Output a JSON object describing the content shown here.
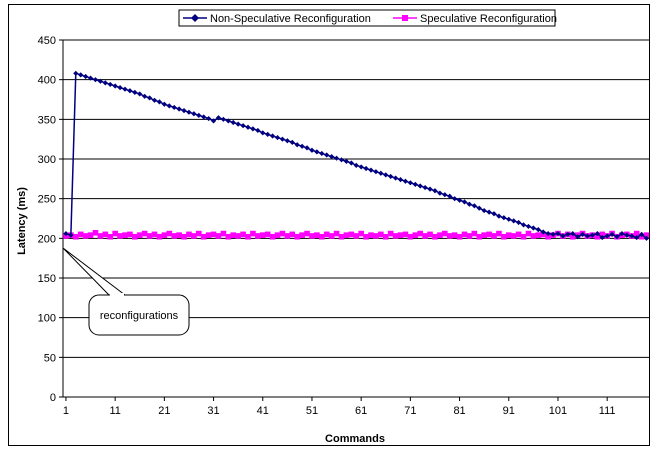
{
  "chart_data": {
    "type": "line",
    "title": "",
    "xlabel": "Commands",
    "ylabel": "Latency (ms)",
    "ylim": [
      0,
      450
    ],
    "yticks": [
      0,
      50,
      100,
      150,
      200,
      250,
      300,
      350,
      400,
      450
    ],
    "xticks": [
      1,
      11,
      21,
      31,
      41,
      51,
      61,
      71,
      81,
      91,
      101,
      111
    ],
    "grid": true,
    "legend_position": "top",
    "annotation": "reconfigurations",
    "series": [
      {
        "name": "Non-Speculative Reconfiguration",
        "color": "#000080",
        "marker": "diamond",
        "x": [
          1,
          2,
          3,
          4,
          5,
          6,
          7,
          8,
          9,
          10,
          11,
          12,
          13,
          14,
          15,
          16,
          17,
          18,
          19,
          20,
          21,
          22,
          23,
          24,
          25,
          26,
          27,
          28,
          29,
          30,
          31,
          32,
          33,
          34,
          35,
          36,
          37,
          38,
          39,
          40,
          41,
          42,
          43,
          44,
          45,
          46,
          47,
          48,
          49,
          50,
          51,
          52,
          53,
          54,
          55,
          56,
          57,
          58,
          59,
          60,
          61,
          62,
          63,
          64,
          65,
          66,
          67,
          68,
          69,
          70,
          71,
          72,
          73,
          74,
          75,
          76,
          77,
          78,
          79,
          80,
          81,
          82,
          83,
          84,
          85,
          86,
          87,
          88,
          89,
          90,
          91,
          92,
          93,
          94,
          95,
          96,
          97,
          98,
          99,
          100,
          101,
          102,
          103,
          104,
          105,
          106,
          107,
          108,
          109,
          110,
          111,
          112,
          113,
          114,
          115,
          116,
          117,
          118,
          119
        ],
        "values": [
          206,
          204,
          408,
          406,
          404,
          402,
          400,
          398,
          396,
          394,
          392,
          390,
          388,
          386,
          384,
          382,
          379,
          377,
          374,
          372,
          369,
          367,
          365,
          363,
          361,
          359,
          357,
          355,
          353,
          351,
          348,
          352,
          350,
          348,
          346,
          344,
          342,
          340,
          338,
          336,
          333,
          331,
          329,
          327,
          325,
          323,
          321,
          318,
          316,
          314,
          311,
          309,
          307,
          305,
          303,
          301,
          299,
          297,
          295,
          292,
          290,
          288,
          286,
          284,
          282,
          280,
          278,
          276,
          274,
          272,
          270,
          268,
          266,
          264,
          262,
          260,
          257,
          255,
          253,
          250,
          248,
          246,
          243,
          241,
          238,
          235,
          233,
          231,
          228,
          226,
          224,
          222,
          220,
          217,
          215,
          213,
          211,
          208,
          206,
          205,
          206,
          203,
          205,
          206,
          202,
          205,
          203,
          204,
          206,
          201,
          203,
          205,
          202,
          206,
          204,
          203,
          201,
          205,
          200
        ]
      },
      {
        "name": "Speculative Reconfiguration",
        "color": "#FF00FF",
        "marker": "square",
        "x": [
          1,
          2,
          3,
          4,
          5,
          6,
          7,
          8,
          9,
          10,
          11,
          12,
          13,
          14,
          15,
          16,
          17,
          18,
          19,
          20,
          21,
          22,
          23,
          24,
          25,
          26,
          27,
          28,
          29,
          30,
          31,
          32,
          33,
          34,
          35,
          36,
          37,
          38,
          39,
          40,
          41,
          42,
          43,
          44,
          45,
          46,
          47,
          48,
          49,
          50,
          51,
          52,
          53,
          54,
          55,
          56,
          57,
          58,
          59,
          60,
          61,
          62,
          63,
          64,
          65,
          66,
          67,
          68,
          69,
          70,
          71,
          72,
          73,
          74,
          75,
          76,
          77,
          78,
          79,
          80,
          81,
          82,
          83,
          84,
          85,
          86,
          87,
          88,
          89,
          90,
          91,
          92,
          93,
          94,
          95,
          96,
          97,
          98,
          99,
          100,
          101,
          102,
          103,
          104,
          105,
          106,
          107,
          108,
          109,
          110,
          111,
          112,
          113,
          114,
          115,
          116,
          117,
          118,
          119
        ],
        "values": [
          203,
          204,
          202,
          205,
          203,
          204,
          207,
          203,
          205,
          202,
          206,
          203,
          204,
          205,
          202,
          204,
          206,
          203,
          205,
          202,
          204,
          206,
          203,
          204,
          202,
          205,
          203,
          206,
          202,
          204,
          205,
          203,
          206,
          202,
          204,
          203,
          205,
          202,
          206,
          203,
          204,
          205,
          202,
          204,
          206,
          203,
          205,
          202,
          204,
          206,
          203,
          204,
          202,
          205,
          203,
          206,
          202,
          204,
          205,
          203,
          206,
          202,
          204,
          203,
          205,
          202,
          206,
          203,
          204,
          205,
          202,
          204,
          206,
          203,
          205,
          202,
          204,
          206,
          203,
          204,
          202,
          205,
          203,
          206,
          202,
          204,
          205,
          203,
          206,
          202,
          204,
          203,
          205,
          202,
          206,
          203,
          204,
          205,
          202,
          204,
          206,
          203,
          205,
          202,
          204,
          206,
          203,
          204,
          202,
          205,
          203,
          206,
          202,
          204,
          205,
          203,
          206,
          202,
          204
        ]
      }
    ]
  }
}
